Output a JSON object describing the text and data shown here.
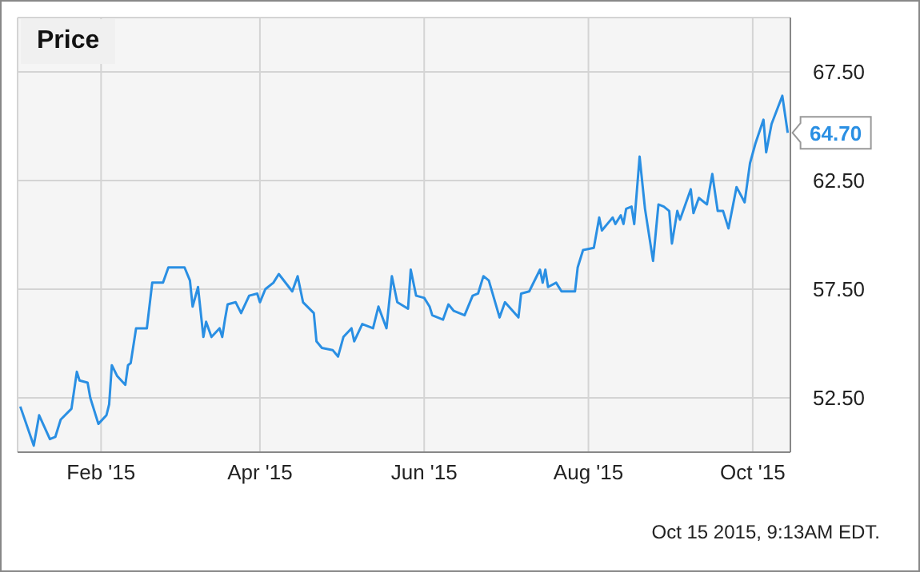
{
  "chart_data": {
    "type": "line",
    "title": "Price",
    "x": [
      "2015-01-02",
      "2015-01-07",
      "2015-01-09",
      "2015-01-13",
      "2015-01-15",
      "2015-01-17",
      "2015-01-21",
      "2015-01-23",
      "2015-01-24",
      "2015-01-27",
      "2015-01-28",
      "2015-01-31",
      "2015-02-03",
      "2015-02-04",
      "2015-02-05",
      "2015-02-07",
      "2015-02-10",
      "2015-02-11",
      "2015-02-12",
      "2015-02-14",
      "2015-02-18",
      "2015-02-20",
      "2015-02-24",
      "2015-02-26",
      "2015-03-04",
      "2015-03-06",
      "2015-03-07",
      "2015-03-09",
      "2015-03-11",
      "2015-03-12",
      "2015-03-14",
      "2015-03-17",
      "2015-03-18",
      "2015-03-19",
      "2015-03-20",
      "2015-03-23",
      "2015-03-25",
      "2015-03-28",
      "2015-03-31",
      "2015-04-01",
      "2015-04-03",
      "2015-04-06",
      "2015-04-08",
      "2015-04-13",
      "2015-04-15",
      "2015-04-17",
      "2015-04-21",
      "2015-04-22",
      "2015-04-24",
      "2015-04-28",
      "2015-04-30",
      "2015-05-02",
      "2015-05-05",
      "2015-05-06",
      "2015-05-09",
      "2015-05-13",
      "2015-05-15",
      "2015-05-18",
      "2015-05-20",
      "2015-05-22",
      "2015-05-26",
      "2015-05-27",
      "2015-05-29",
      "2015-06-01",
      "2015-06-03",
      "2015-06-04",
      "2015-06-08",
      "2015-06-10",
      "2015-06-12",
      "2015-06-16",
      "2015-06-19",
      "2015-06-21",
      "2015-06-23",
      "2015-06-25",
      "2015-06-29",
      "2015-07-01",
      "2015-07-06",
      "2015-07-07",
      "2015-07-10",
      "2015-07-14",
      "2015-07-15",
      "2015-07-16",
      "2015-07-17",
      "2015-07-20",
      "2015-07-22",
      "2015-07-27",
      "2015-07-28",
      "2015-07-30",
      "2015-08-03",
      "2015-08-05",
      "2015-08-06",
      "2015-08-10",
      "2015-08-11",
      "2015-08-13",
      "2015-08-14",
      "2015-08-15",
      "2015-08-17",
      "2015-08-18",
      "2015-08-20",
      "2015-08-22",
      "2015-08-25",
      "2015-08-27",
      "2015-08-29",
      "2015-08-31",
      "2015-09-01",
      "2015-09-03",
      "2015-09-04",
      "2015-09-08",
      "2015-09-09",
      "2015-09-11",
      "2015-09-14",
      "2015-09-16",
      "2015-09-18",
      "2015-09-20",
      "2015-09-22",
      "2015-09-25",
      "2015-09-28",
      "2015-09-30",
      "2015-10-02",
      "2015-10-05",
      "2015-10-06",
      "2015-10-08",
      "2015-10-12",
      "2015-10-14"
    ],
    "values": [
      52.1,
      50.3,
      51.7,
      50.6,
      50.7,
      51.5,
      52.0,
      53.7,
      53.3,
      53.2,
      52.5,
      51.3,
      51.7,
      52.2,
      54.0,
      53.5,
      53.1,
      54.0,
      54.1,
      55.7,
      55.7,
      57.8,
      57.8,
      58.5,
      58.5,
      57.9,
      56.7,
      57.6,
      55.3,
      56.0,
      55.3,
      55.7,
      55.3,
      56.1,
      56.8,
      56.9,
      56.4,
      57.2,
      57.3,
      56.9,
      57.5,
      57.8,
      58.2,
      57.4,
      58.1,
      56.9,
      56.4,
      55.1,
      54.8,
      54.7,
      54.4,
      55.3,
      55.7,
      55.1,
      55.9,
      55.7,
      56.7,
      55.7,
      58.1,
      56.9,
      56.6,
      58.4,
      57.2,
      57.1,
      56.7,
      56.3,
      56.1,
      56.8,
      56.5,
      56.3,
      57.2,
      57.3,
      58.1,
      57.9,
      56.2,
      56.9,
      56.2,
      57.3,
      57.4,
      58.4,
      57.8,
      58.4,
      57.6,
      57.8,
      57.4,
      57.4,
      58.5,
      59.3,
      59.4,
      60.8,
      60.2,
      60.8,
      60.5,
      60.9,
      60.5,
      61.2,
      61.3,
      60.5,
      63.6,
      61.2,
      58.8,
      61.4,
      61.3,
      61.1,
      59.6,
      61.1,
      60.7,
      62.1,
      61.0,
      61.7,
      61.4,
      62.8,
      61.1,
      61.1,
      60.3,
      62.2,
      61.5,
      63.3,
      64.2,
      65.3,
      63.8,
      65.1,
      66.4,
      64.7
    ],
    "color": "#2a8fe3",
    "xlim": [
      "2015-01-01",
      "2015-10-15"
    ],
    "xticks": [
      {
        "value": "2015-02-01",
        "label": "Feb '15"
      },
      {
        "value": "2015-04-01",
        "label": "Apr '15"
      },
      {
        "value": "2015-06-01",
        "label": "Jun '15"
      },
      {
        "value": "2015-08-01",
        "label": "Aug '15"
      },
      {
        "value": "2015-10-01",
        "label": "Oct '15"
      }
    ],
    "ylim": [
      50,
      70
    ],
    "yticks": [
      {
        "value": 52.5,
        "label": "52.50"
      },
      {
        "value": 57.5,
        "label": "57.50"
      },
      {
        "value": 62.5,
        "label": "62.50"
      },
      {
        "value": 67.5,
        "label": "67.50"
      }
    ],
    "grid": true,
    "annotations": [
      {
        "text": "64.70",
        "x": "2015-10-14",
        "y": 64.7
      },
      "Oct 15 2015, 9:13AM EDT."
    ]
  }
}
